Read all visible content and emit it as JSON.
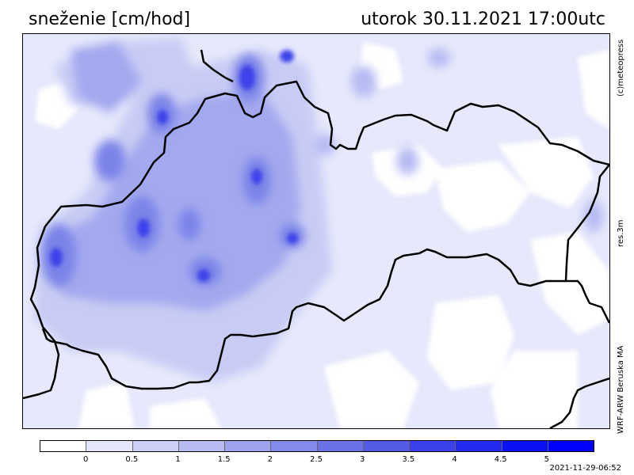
{
  "title": {
    "variable": "sneženie [cm/hod]",
    "datetime": "utorok 30.11.2021 17:00utc"
  },
  "side_labels": {
    "copyright": "(c)meteopress",
    "resolution": "res.3m",
    "model": "WRF-ARW Beruska MA"
  },
  "legend": {
    "ticks": [
      "0",
      "0.5",
      "1",
      "1.5",
      "2",
      "2.5",
      "3",
      "3.5",
      "4",
      "4.5",
      "5"
    ],
    "colors": [
      "#ffffff",
      "#e4e6fb",
      "#ccd0f6",
      "#b6bbf2",
      "#9da3ee",
      "#848ae9",
      "#6b72e6",
      "#555be6",
      "#3c42ea",
      "#252af0",
      "#0b10f5",
      "#0000ff"
    ]
  },
  "timestamp": "2021-11-29-06:52",
  "map": {
    "background_color": "#e6e8fb",
    "border_color": "#000000"
  }
}
